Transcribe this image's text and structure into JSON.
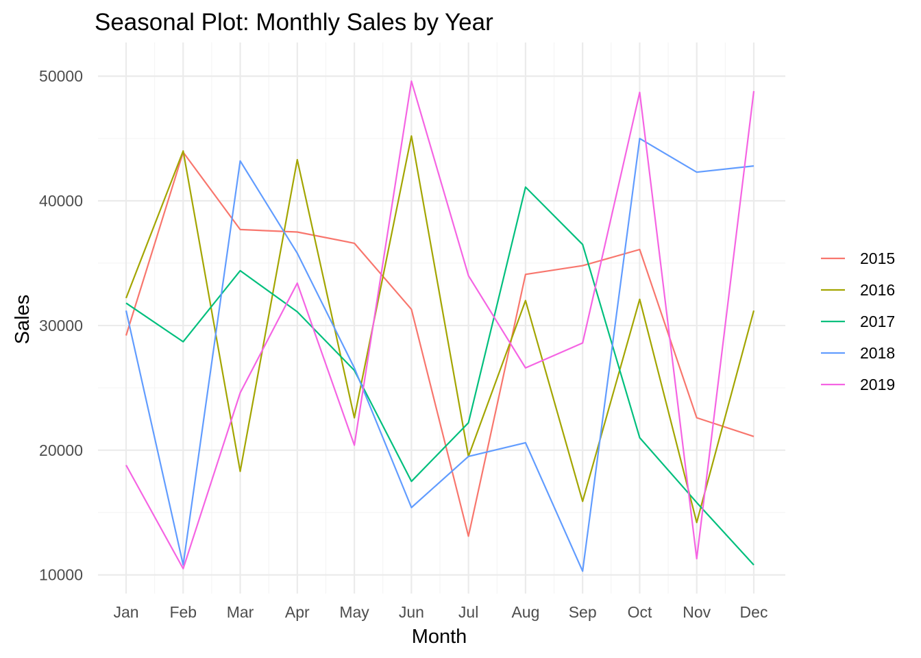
{
  "chart_data": {
    "type": "line",
    "title": "Seasonal Plot: Monthly Sales by Year",
    "xlabel": "Month",
    "ylabel": "Sales",
    "categories": [
      "Jan",
      "Feb",
      "Mar",
      "Apr",
      "May",
      "Jun",
      "Jul",
      "Aug",
      "Sep",
      "Oct",
      "Nov",
      "Dec"
    ],
    "ylim": [
      8500,
      52700
    ],
    "yticks": [
      10000,
      20000,
      30000,
      40000,
      50000
    ],
    "ytick_labels": [
      "10000",
      "20000",
      "30000",
      "40000",
      "50000"
    ],
    "grid": true,
    "legend_position": "right",
    "series": [
      {
        "name": "2015",
        "color": "#F8766D",
        "values": [
          29200,
          43900,
          37700,
          37500,
          36600,
          31300,
          13100,
          34100,
          34800,
          36100,
          22600,
          21100
        ]
      },
      {
        "name": "2016",
        "color": "#A3A500",
        "values": [
          32200,
          44000,
          18300,
          43300,
          22600,
          45200,
          19500,
          32000,
          15900,
          32100,
          14200,
          31200
        ]
      },
      {
        "name": "2017",
        "color": "#00BF7D",
        "values": [
          31800,
          28700,
          34400,
          31100,
          26400,
          17500,
          22200,
          41100,
          36500,
          21000,
          15800,
          10800
        ]
      },
      {
        "name": "2018",
        "color": "#619CFF",
        "values": [
          31200,
          10800,
          43200,
          35800,
          26600,
          15400,
          19500,
          20600,
          10300,
          45000,
          42300,
          42800
        ]
      },
      {
        "name": "2019",
        "color": "#F564E3",
        "values": [
          18800,
          10500,
          24600,
          33400,
          20400,
          49600,
          34000,
          26600,
          28600,
          48700,
          11300,
          48800
        ]
      }
    ]
  }
}
